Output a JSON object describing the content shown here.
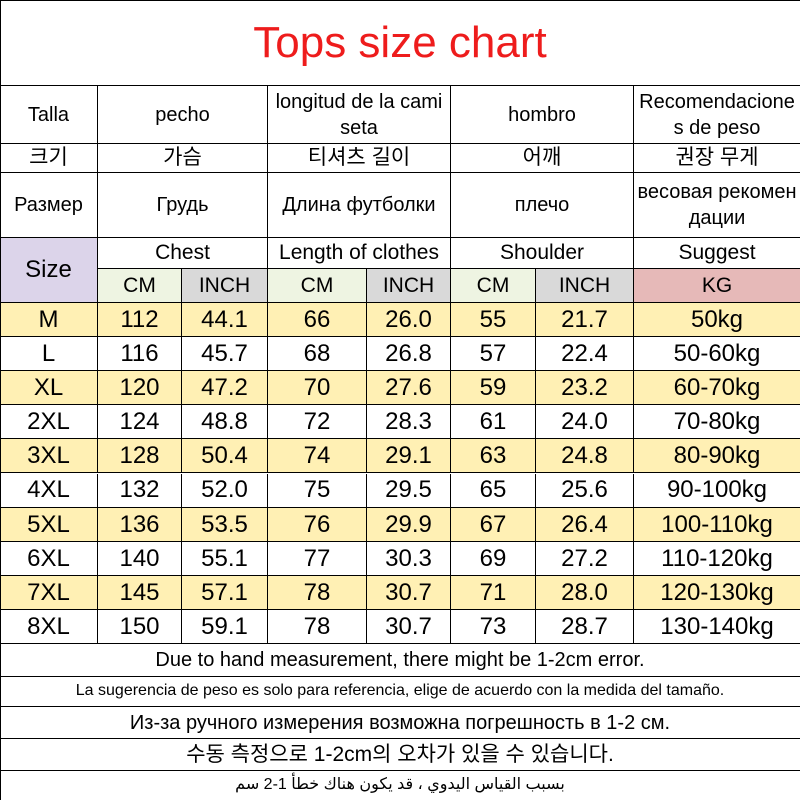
{
  "title": "Tops size chart",
  "header_rows": [
    [
      "Talla",
      "pecho",
      "longitud de la camiseta",
      "hombro",
      "Recomendaciones de peso"
    ],
    [
      "크기",
      "가슴",
      "티셔츠 길이",
      "어깨",
      "권장 무게"
    ],
    [
      "Размер",
      "Грудь",
      "Длина футболки",
      "плечо",
      "весовая рекомендации"
    ]
  ],
  "size_label": "Size",
  "english_headers": [
    "Chest",
    "Length of clothes",
    "Shoulder",
    "Suggest"
  ],
  "units": [
    "CM",
    "INCH",
    "CM",
    "INCH",
    "CM",
    "INCH",
    "KG"
  ],
  "rows": [
    [
      "M",
      "112",
      "44.1",
      "66",
      "26.0",
      "55",
      "21.7",
      "50kg"
    ],
    [
      "L",
      "116",
      "45.7",
      "68",
      "26.8",
      "57",
      "22.4",
      "50-60kg"
    ],
    [
      "XL",
      "120",
      "47.2",
      "70",
      "27.6",
      "59",
      "23.2",
      "60-70kg"
    ],
    [
      "2XL",
      "124",
      "48.8",
      "72",
      "28.3",
      "61",
      "24.0",
      "70-80kg"
    ],
    [
      "3XL",
      "128",
      "50.4",
      "74",
      "29.1",
      "63",
      "24.8",
      "80-90kg"
    ],
    [
      "4XL",
      "132",
      "52.0",
      "75",
      "29.5",
      "65",
      "25.6",
      "90-100kg"
    ],
    [
      "5XL",
      "136",
      "53.5",
      "76",
      "29.9",
      "67",
      "26.4",
      "100-110kg"
    ],
    [
      "6XL",
      "140",
      "55.1",
      "77",
      "30.3",
      "69",
      "27.2",
      "110-120kg"
    ],
    [
      "7XL",
      "145",
      "57.1",
      "78",
      "30.7",
      "71",
      "28.0",
      "120-130kg"
    ],
    [
      "8XL",
      "150",
      "59.1",
      "78",
      "30.7",
      "73",
      "28.7",
      "130-140kg"
    ]
  ],
  "notes": [
    "Due to hand measurement, there might be 1-2cm error.",
    "La sugerencia de peso es solo para referencia, elige de acuerdo con la medida del tamaño.",
    "Из-за ручного измерения возможна погрешность в 1-2 см.",
    "수동 측정으로 1-2cm의 오차가 있을 수 있습니다.",
    "بسبب القياس اليدوي ، قد يكون هناك خطأ 1-2 سم"
  ]
}
